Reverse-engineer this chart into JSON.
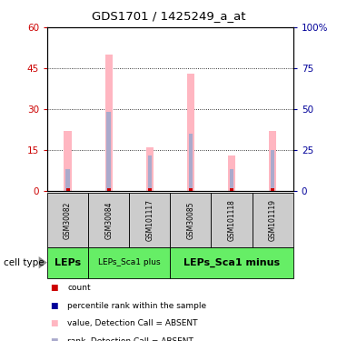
{
  "title": "GDS1701 / 1425249_a_at",
  "samples": [
    "GSM30082",
    "GSM30084",
    "GSM101117",
    "GSM30085",
    "GSM101118",
    "GSM101119"
  ],
  "pink_values": [
    22,
    50,
    16,
    43,
    13,
    22
  ],
  "blue_rank_values": [
    8,
    29,
    13,
    21,
    8,
    15
  ],
  "cell_types": [
    {
      "label": "LEPs",
      "start": 0,
      "end": 1,
      "fontsize": 8,
      "bold": true
    },
    {
      "label": "LEPs_Sca1 plus",
      "start": 1,
      "end": 3,
      "fontsize": 6.5,
      "bold": false
    },
    {
      "label": "LEPs_Sca1 minus",
      "start": 3,
      "end": 6,
      "fontsize": 8,
      "bold": true
    }
  ],
  "ylim_left": [
    0,
    60
  ],
  "ylim_right": [
    0,
    100
  ],
  "yticks_left": [
    0,
    15,
    30,
    45,
    60
  ],
  "yticks_right": [
    0,
    25,
    50,
    75,
    100
  ],
  "ytick_labels_left": [
    "0",
    "15",
    "30",
    "45",
    "60"
  ],
  "ytick_labels_right": [
    "0",
    "25",
    "50",
    "75",
    "100%"
  ],
  "pink_color": "#FFB6C1",
  "blue_light_color": "#AAAACC",
  "red_color": "#CC0000",
  "blue_color": "#000099",
  "green_color": "#66EE66",
  "gray_color": "#CCCCCC",
  "legend_items": [
    {
      "label": "count",
      "color": "#CC0000"
    },
    {
      "label": "percentile rank within the sample",
      "color": "#000099"
    },
    {
      "label": "value, Detection Call = ABSENT",
      "color": "#FFB6C1"
    },
    {
      "label": "rank, Detection Call = ABSENT",
      "color": "#AAAACC"
    }
  ]
}
